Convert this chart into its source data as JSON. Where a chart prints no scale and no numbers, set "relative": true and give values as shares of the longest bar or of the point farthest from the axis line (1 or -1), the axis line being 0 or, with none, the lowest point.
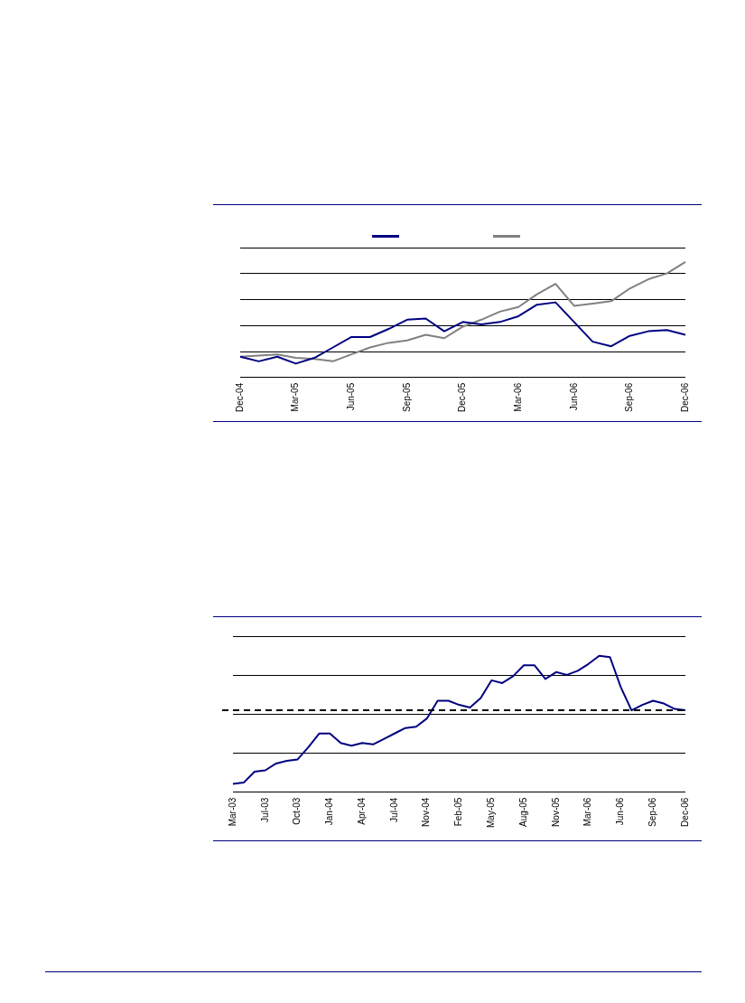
{
  "chart_data": [
    {
      "type": "line",
      "relative": true,
      "grid": "y",
      "legend": false,
      "categories": [
        "Dec-04",
        null,
        null,
        "Mar-05",
        null,
        null,
        "Jun-05",
        null,
        null,
        "Sep-05",
        null,
        null,
        "Dec-05",
        null,
        null,
        "Mar-06",
        null,
        null,
        "Jun-06",
        null,
        null,
        "Sep-06",
        null,
        null,
        "Dec-06"
      ],
      "series": [
        {
          "color": "#000080",
          "values": [
            0.18,
            0.14,
            0.18,
            0.12,
            0.17,
            0.26,
            0.35,
            0.35,
            0.42,
            0.5,
            0.51,
            0.4,
            0.48,
            0.46,
            0.48,
            0.53,
            0.63,
            0.65,
            0.48,
            0.31,
            0.27,
            0.36,
            0.4,
            0.41,
            0.37
          ]
        },
        {
          "color": "#808080",
          "values": [
            0.18,
            0.19,
            0.2,
            0.17,
            0.16,
            0.14,
            0.2,
            0.26,
            0.3,
            0.32,
            0.37,
            0.34,
            0.44,
            0.5,
            0.57,
            0.61,
            0.72,
            0.81,
            0.62,
            0.64,
            0.66,
            0.77,
            0.85,
            0.9,
            1.0
          ]
        }
      ]
    },
    {
      "type": "line",
      "relative": true,
      "grid": "y",
      "legend": false,
      "categories": [
        "Mar-03",
        null,
        null,
        "Jul-03",
        null,
        null,
        "Oct-03",
        null,
        null,
        "Jan-04",
        null,
        null,
        "Apr-04",
        null,
        null,
        "Jul-04",
        null,
        null,
        "Nov-04",
        null,
        null,
        "Feb-05",
        null,
        null,
        "May-05",
        null,
        null,
        "Aug-05",
        null,
        null,
        "Nov-05",
        null,
        null,
        "Mar-06",
        null,
        null,
        "Jun-06",
        null,
        null,
        "Sep-06",
        null,
        null,
        "Dec-06"
      ],
      "series": [
        {
          "color": "#000080",
          "values": [
            0.06,
            0.07,
            0.15,
            0.16,
            0.21,
            0.23,
            0.24,
            0.33,
            0.43,
            0.43,
            0.36,
            0.34,
            0.36,
            0.35,
            0.39,
            0.43,
            0.47,
            0.48,
            0.54,
            0.67,
            0.67,
            0.64,
            0.62,
            0.69,
            0.82,
            0.8,
            0.85,
            0.93,
            0.93,
            0.83,
            0.88,
            0.86,
            0.89,
            0.94,
            1.0,
            0.99,
            0.77,
            0.6,
            0.64,
            0.67,
            0.65,
            0.61,
            0.6
          ]
        }
      ],
      "ref_lines": [
        {
          "axis": "y",
          "value": 0.6,
          "color": "#000000",
          "line_style": "dashed"
        }
      ]
    }
  ]
}
